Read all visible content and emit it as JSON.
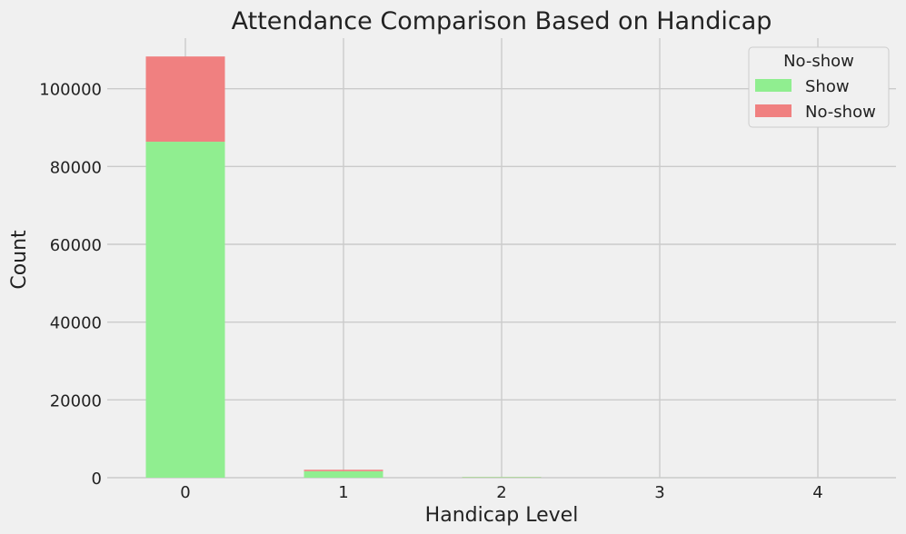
{
  "chart_data": {
    "type": "bar",
    "stacked": true,
    "title": "Attendance Comparison Based on Handicap",
    "xlabel": "Handicap Level",
    "ylabel": "Count",
    "categories": [
      "0",
      "1",
      "2",
      "3",
      "4"
    ],
    "series": [
      {
        "name": "Show",
        "color": "#90ee90",
        "values": [
          86374,
          1676,
          146,
          10,
          2
        ]
      },
      {
        "name": "No-show",
        "color": "#f08080",
        "values": [
          21912,
          366,
          37,
          3,
          1
        ]
      }
    ],
    "ylim": [
      0,
      113000
    ],
    "yticks": [
      0,
      20000,
      40000,
      60000,
      80000,
      100000
    ],
    "grid": true,
    "legend": {
      "title": "No-show",
      "placement": "top-right"
    }
  }
}
